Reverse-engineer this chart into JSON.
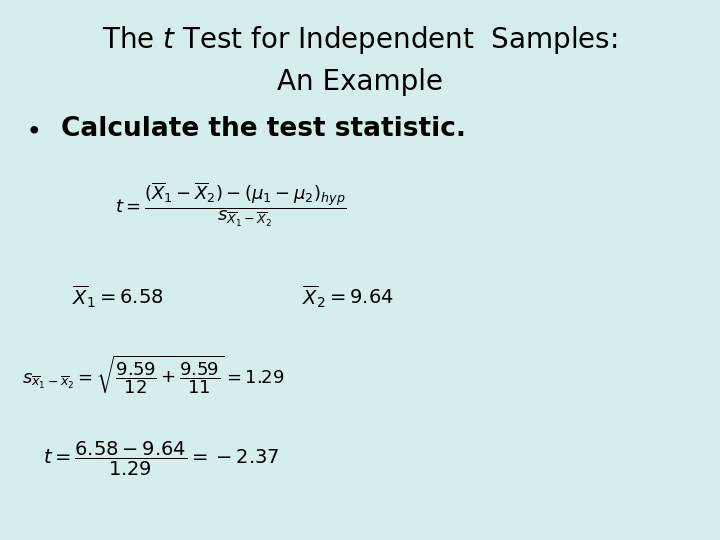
{
  "background_color": "#d5eeed",
  "title_line1": "The $t$ Test for Independent  Samples:",
  "title_line2": "An Example",
  "title_fontsize": 20,
  "bullet_fontsize": 19,
  "formula_fontsize": 13,
  "formula2_fontsize": 14,
  "text_color": "#000000"
}
